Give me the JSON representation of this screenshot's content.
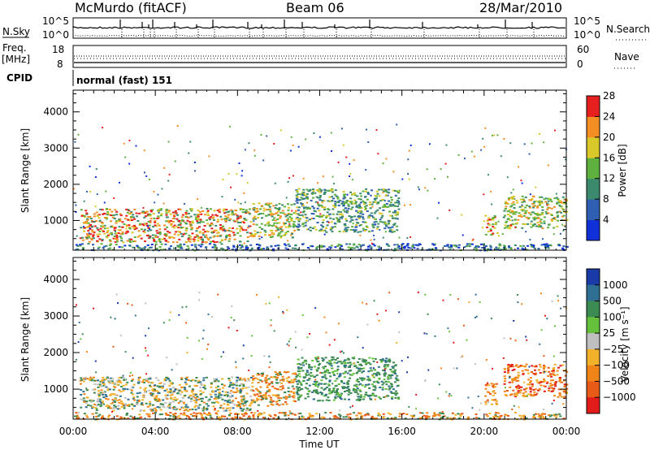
{
  "header": {
    "station": "McMurdo (fitACF)",
    "beam": "Beam 06",
    "date": "28/Mar/2010"
  },
  "panels": {
    "sky_label": "N.Sky",
    "sky_ticks": [
      "10^5",
      "10^0"
    ],
    "search_label": "N.Search",
    "freq_label_1": "Freq.",
    "freq_label_2": "[MHz]",
    "freq_ticks": [
      "18",
      "8"
    ],
    "nave_ticks": [
      "60",
      "0"
    ],
    "nave_label": "Nave",
    "cpid_label": "CPID",
    "cpid_text": "normal (fast) 151"
  },
  "chart_data": [
    {
      "type": "heatmap",
      "name": "power",
      "xlabel": "",
      "ylabel": "Slant Range [km]",
      "x_ticks": [
        "00:00",
        "04:00",
        "08:00",
        "12:00",
        "16:00",
        "20:00",
        "00:00"
      ],
      "y_ticks": [
        1000,
        2000,
        3000,
        4000
      ],
      "xlim_hours": [
        0,
        24
      ],
      "ylim_km": [
        180,
        4600
      ],
      "colorbar": {
        "label": "Power [dB]",
        "ticks": [
          "4",
          "8",
          "12",
          "16",
          "20",
          "24",
          "28"
        ],
        "colors": [
          "#1030d8",
          "#2f5fb2",
          "#3b8a6e",
          "#5eb13f",
          "#d9c829",
          "#f28e23",
          "#e5201f"
        ]
      }
    },
    {
      "type": "heatmap",
      "name": "velocity",
      "xlabel": "Time UT",
      "ylabel": "Slant Range [km]",
      "x_ticks": [
        "00:00",
        "04:00",
        "08:00",
        "12:00",
        "16:00",
        "20:00",
        "00:00"
      ],
      "y_ticks": [
        1000,
        2000,
        3000,
        4000
      ],
      "xlim_hours": [
        0,
        24
      ],
      "ylim_km": [
        180,
        4600
      ],
      "colorbar": {
        "label": "Velocity [m s⁻¹]",
        "ticks": [
          "1000",
          "500",
          "100",
          "25",
          "−25",
          "−100",
          "−500",
          "−1000"
        ],
        "colors": [
          "#1a3aa8",
          "#2f6f93",
          "#3c8b52",
          "#65c13b",
          "#bfbfbf",
          "#f2b12a",
          "#f08418",
          "#e85a18",
          "#e21b1b"
        ]
      }
    }
  ]
}
